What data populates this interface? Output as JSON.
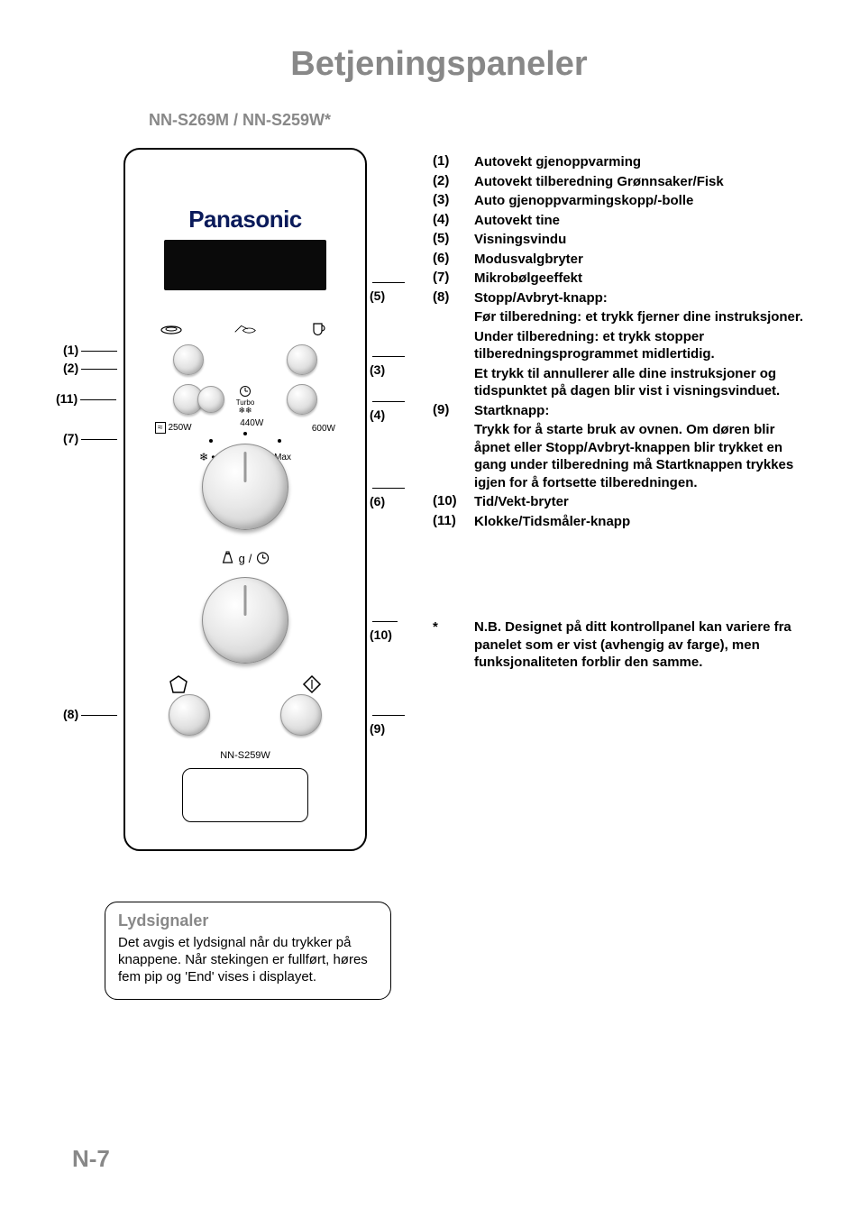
{
  "title": "Betjeningspaneler",
  "model": "NN-S269M  / NN-S259W*",
  "page_number": "N-7",
  "panel": {
    "brand": "Panasonic",
    "power": {
      "low": "250W",
      "mid": "440W",
      "high": "600W"
    },
    "defrost_turbo_top": "Turbo",
    "mode_max": "Max",
    "model_tag": "NN-S259W",
    "weight_g": "g"
  },
  "callouts": {
    "c1": "(1)",
    "c2": "(2)",
    "c3": "(3)",
    "c4": "(4)",
    "c5": "(5)",
    "c6": "(6)",
    "c7": "(7)",
    "c8": "(8)",
    "c9": "(9)",
    "c10": "(10)",
    "c11": "(11)"
  },
  "descriptions": [
    {
      "num": "(1)",
      "title": "Autovekt gjenoppvarming"
    },
    {
      "num": "(2)",
      "title": "Autovekt tilberedning Grønnsaker/Fisk"
    },
    {
      "num": "(3)",
      "title": "Auto gjenoppvarmingskopp/-bolle"
    },
    {
      "num": "(4)",
      "title": "Autovekt tine"
    },
    {
      "num": "(5)",
      "title": "Visningsvindu"
    },
    {
      "num": "(6)",
      "title": "Modusvalgbryter"
    },
    {
      "num": "(7)",
      "title": "Mikrobølgeeffekt"
    },
    {
      "num": "(8)",
      "title": "Stopp/Avbryt-knapp:",
      "body": "Før tilberedning: et trykk fjerner dine instruksjoner.\nUnder tilberedning: et trykk stopper tilberedningsprogrammet midlertidig.\nEt trykk til annullerer alle dine instruksjoner og tidspunktet på dagen blir vist i visningsvinduet."
    },
    {
      "num": "(9)",
      "title": "Startknapp:",
      "body": "Trykk for å starte bruk av ovnen. Om døren blir åpnet eller Stopp/Avbryt-knappen blir trykket en gang under tilberedning må Startknappen trykkes igjen for å fortsette tilberedningen."
    },
    {
      "num": "(10)",
      "title": "Tid/Vekt-bryter"
    },
    {
      "num": "(11)",
      "title": "Klokke/Tidsmåler-knapp"
    }
  ],
  "note": "N.B. Designet på ditt kontrollpanel kan variere fra panelet som er vist (avhengig av farge), men funksjonaliteten forblir den samme.",
  "note_prefix": "*",
  "signal_box": {
    "title": "Lydsignaler",
    "body": "Det avgis et lydsignal når du trykker på knappene. Når stekingen er fullført, høres fem pip og 'End' vises i displayet."
  }
}
